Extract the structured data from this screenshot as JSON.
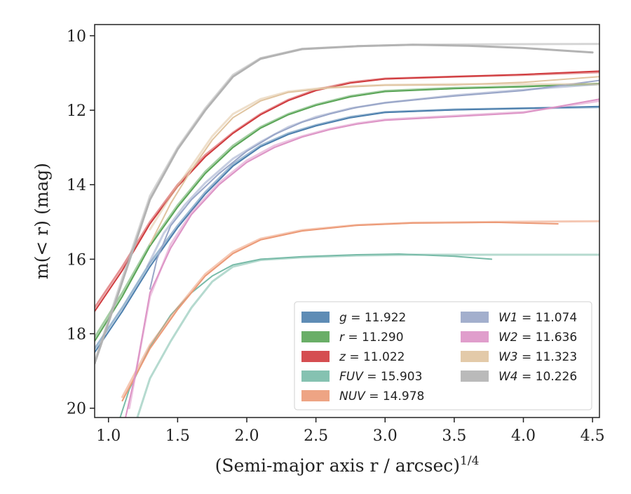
{
  "chart_data": {
    "type": "line",
    "xlabel": "(Semi-major axis r / arcsec)",
    "xlabel_exponent": "1/4",
    "ylabel_prefix": "m(< r) (mag)",
    "xlim": [
      0.9,
      4.55
    ],
    "ylim": [
      20.25,
      9.7
    ],
    "y_inverted": true,
    "xticks": [
      1.0,
      1.5,
      2.0,
      2.5,
      3.0,
      3.5,
      4.0,
      4.5
    ],
    "xtick_labels": [
      "1.0",
      "1.5",
      "2.0",
      "2.5",
      "3.0",
      "3.5",
      "4.0",
      "4.5"
    ],
    "yticks": [
      10,
      12,
      14,
      16,
      18,
      20
    ],
    "ytick_labels": [
      "10",
      "12",
      "14",
      "16",
      "18",
      "20"
    ],
    "grid": false,
    "legend_position": "lower-right",
    "series": [
      {
        "name": "g",
        "value": "11.922",
        "label": "g = 11.922",
        "color": "#4c7fad",
        "model": [
          [
            0.9,
            18.4
          ],
          [
            1.1,
            17.3
          ],
          [
            1.3,
            16.1
          ],
          [
            1.5,
            15.1
          ],
          [
            1.7,
            14.2
          ],
          [
            1.9,
            13.45
          ],
          [
            2.1,
            12.95
          ],
          [
            2.3,
            12.62
          ],
          [
            2.5,
            12.4
          ],
          [
            2.75,
            12.18
          ],
          [
            3.0,
            12.05
          ],
          [
            3.5,
            11.98
          ],
          [
            4.0,
            11.95
          ],
          [
            4.55,
            11.92
          ]
        ],
        "data": [
          [
            0.9,
            18.5
          ],
          [
            1.1,
            17.4
          ],
          [
            1.3,
            16.2
          ],
          [
            1.5,
            15.15
          ],
          [
            1.7,
            14.25
          ],
          [
            1.9,
            13.5
          ],
          [
            2.1,
            12.98
          ],
          [
            2.3,
            12.65
          ],
          [
            2.5,
            12.42
          ],
          [
            2.75,
            12.2
          ],
          [
            3.0,
            12.06
          ],
          [
            3.5,
            11.99
          ],
          [
            4.0,
            11.95
          ],
          [
            4.55,
            11.9
          ]
        ]
      },
      {
        "name": "r",
        "value": "11.290",
        "label": "r = 11.290",
        "color": "#5aa557",
        "model": [
          [
            0.9,
            18.1
          ],
          [
            1.1,
            16.9
          ],
          [
            1.3,
            15.6
          ],
          [
            1.5,
            14.55
          ],
          [
            1.7,
            13.65
          ],
          [
            1.9,
            12.95
          ],
          [
            2.1,
            12.45
          ],
          [
            2.3,
            12.1
          ],
          [
            2.5,
            11.85
          ],
          [
            2.75,
            11.62
          ],
          [
            3.0,
            11.48
          ],
          [
            3.5,
            11.4
          ],
          [
            4.0,
            11.36
          ],
          [
            4.55,
            11.3
          ]
        ],
        "data": [
          [
            0.9,
            18.2
          ],
          [
            1.1,
            17.0
          ],
          [
            1.3,
            15.65
          ],
          [
            1.5,
            14.6
          ],
          [
            1.7,
            13.7
          ],
          [
            1.9,
            13.0
          ],
          [
            2.1,
            12.48
          ],
          [
            2.3,
            12.12
          ],
          [
            2.5,
            11.87
          ],
          [
            2.75,
            11.64
          ],
          [
            3.0,
            11.5
          ],
          [
            3.5,
            11.42
          ],
          [
            4.0,
            11.37
          ],
          [
            4.55,
            11.28
          ]
        ]
      },
      {
        "name": "z",
        "value": "11.022",
        "label": "z = 11.022",
        "color": "#d03b3e",
        "model": [
          [
            0.9,
            17.3
          ],
          [
            1.1,
            16.2
          ],
          [
            1.3,
            15.0
          ],
          [
            1.5,
            14.0
          ],
          [
            1.7,
            13.2
          ],
          [
            1.9,
            12.6
          ],
          [
            2.1,
            12.1
          ],
          [
            2.3,
            11.72
          ],
          [
            2.5,
            11.45
          ],
          [
            2.75,
            11.25
          ],
          [
            3.0,
            11.15
          ],
          [
            3.5,
            11.1
          ],
          [
            4.0,
            11.05
          ],
          [
            4.55,
            10.98
          ]
        ],
        "data": [
          [
            0.9,
            17.4
          ],
          [
            1.1,
            16.3
          ],
          [
            1.3,
            15.05
          ],
          [
            1.5,
            14.05
          ],
          [
            1.7,
            13.25
          ],
          [
            1.9,
            12.62
          ],
          [
            2.1,
            12.12
          ],
          [
            2.3,
            11.74
          ],
          [
            2.5,
            11.47
          ],
          [
            2.75,
            11.27
          ],
          [
            3.0,
            11.16
          ],
          [
            3.5,
            11.1
          ],
          [
            4.0,
            11.04
          ],
          [
            4.55,
            10.95
          ]
        ]
      },
      {
        "name": "FUV",
        "value": "15.903",
        "label": "FUV = 15.903",
        "color": "#78bba8",
        "model": [
          [
            1.2,
            20.35
          ],
          [
            1.3,
            19.2
          ],
          [
            1.45,
            18.2
          ],
          [
            1.6,
            17.3
          ],
          [
            1.75,
            16.6
          ],
          [
            1.9,
            16.2
          ],
          [
            2.1,
            16.02
          ],
          [
            2.4,
            15.95
          ],
          [
            2.8,
            15.9
          ],
          [
            3.2,
            15.88
          ],
          [
            3.8,
            15.88
          ],
          [
            4.55,
            15.88
          ]
        ],
        "data": [
          [
            1.08,
            20.3
          ],
          [
            1.15,
            19.5
          ],
          [
            1.3,
            18.35
          ],
          [
            1.45,
            17.5
          ],
          [
            1.6,
            16.9
          ],
          [
            1.75,
            16.45
          ],
          [
            1.9,
            16.15
          ],
          [
            2.1,
            16.0
          ],
          [
            2.4,
            15.93
          ],
          [
            2.8,
            15.88
          ],
          [
            3.1,
            15.86
          ],
          [
            3.5,
            15.92
          ],
          [
            3.77,
            16.0
          ]
        ]
      },
      {
        "name": "NUV",
        "value": "14.978",
        "label": "NUV = 14.978",
        "color": "#ec9a77",
        "model": [
          [
            1.1,
            19.7
          ],
          [
            1.3,
            18.3
          ],
          [
            1.5,
            17.3
          ],
          [
            1.7,
            16.4
          ],
          [
            1.9,
            15.8
          ],
          [
            2.1,
            15.45
          ],
          [
            2.4,
            15.22
          ],
          [
            2.8,
            15.08
          ],
          [
            3.2,
            15.02
          ],
          [
            3.8,
            15.0
          ],
          [
            4.55,
            14.98
          ]
        ],
        "data": [
          [
            1.1,
            19.8
          ],
          [
            1.2,
            19.1
          ],
          [
            1.3,
            18.4
          ],
          [
            1.5,
            17.35
          ],
          [
            1.7,
            16.45
          ],
          [
            1.9,
            15.85
          ],
          [
            2.1,
            15.48
          ],
          [
            2.4,
            15.24
          ],
          [
            2.8,
            15.09
          ],
          [
            3.2,
            15.03
          ],
          [
            3.8,
            15.01
          ],
          [
            4.25,
            15.05
          ]
        ]
      },
      {
        "name": "W1",
        "value": "11.074",
        "label": "W1 = 11.074",
        "color": "#99a6c8",
        "model": [
          [
            1.28,
            16.2
          ],
          [
            1.4,
            15.3
          ],
          [
            1.55,
            14.55
          ],
          [
            1.7,
            13.95
          ],
          [
            1.9,
            13.3
          ],
          [
            2.1,
            12.85
          ],
          [
            2.3,
            12.45
          ],
          [
            2.5,
            12.18
          ],
          [
            2.75,
            11.95
          ],
          [
            3.0,
            11.8
          ],
          [
            3.5,
            11.6
          ],
          [
            4.0,
            11.45
          ],
          [
            4.55,
            11.3
          ]
        ],
        "data": [
          [
            1.3,
            16.8
          ],
          [
            1.35,
            16.0
          ],
          [
            1.45,
            15.1
          ],
          [
            1.6,
            14.4
          ],
          [
            1.8,
            13.7
          ],
          [
            2.0,
            13.1
          ],
          [
            2.2,
            12.65
          ],
          [
            2.4,
            12.32
          ],
          [
            2.6,
            12.1
          ],
          [
            2.8,
            11.92
          ],
          [
            3.0,
            11.8
          ],
          [
            3.5,
            11.62
          ],
          [
            4.0,
            11.47
          ],
          [
            4.55,
            11.2
          ]
        ]
      },
      {
        "name": "W2",
        "value": "11.636",
        "label": "W2 = 11.636",
        "color": "#dd94c6",
        "model": [
          [
            1.15,
            20.0
          ],
          [
            1.3,
            17.0
          ],
          [
            1.45,
            15.6
          ],
          [
            1.6,
            14.75
          ],
          [
            1.8,
            13.95
          ],
          [
            2.0,
            13.35
          ],
          [
            2.2,
            12.95
          ],
          [
            2.4,
            12.7
          ],
          [
            2.6,
            12.5
          ],
          [
            2.8,
            12.35
          ],
          [
            3.0,
            12.25
          ],
          [
            3.5,
            12.15
          ],
          [
            4.0,
            12.05
          ],
          [
            4.55,
            11.75
          ]
        ],
        "data": [
          [
            1.12,
            20.3
          ],
          [
            1.2,
            19.0
          ],
          [
            1.3,
            16.9
          ],
          [
            1.45,
            15.7
          ],
          [
            1.6,
            14.8
          ],
          [
            1.8,
            14.0
          ],
          [
            2.0,
            13.4
          ],
          [
            2.2,
            13.0
          ],
          [
            2.4,
            12.72
          ],
          [
            2.6,
            12.52
          ],
          [
            2.8,
            12.37
          ],
          [
            3.0,
            12.27
          ],
          [
            3.5,
            12.17
          ],
          [
            4.0,
            12.07
          ],
          [
            4.55,
            11.7
          ]
        ]
      },
      {
        "name": "W3",
        "value": "11.323",
        "label": "W3 = 11.323",
        "color": "#e0c4a0",
        "model": [
          [
            1.3,
            15.2
          ],
          [
            1.45,
            14.3
          ],
          [
            1.6,
            13.5
          ],
          [
            1.75,
            12.7
          ],
          [
            1.9,
            12.1
          ],
          [
            2.1,
            11.7
          ],
          [
            2.3,
            11.5
          ],
          [
            2.6,
            11.38
          ],
          [
            3.0,
            11.32
          ],
          [
            3.5,
            11.3
          ],
          [
            4.0,
            11.3
          ],
          [
            4.55,
            11.3
          ]
        ],
        "data": [
          [
            1.3,
            15.6
          ],
          [
            1.45,
            14.5
          ],
          [
            1.6,
            13.6
          ],
          [
            1.75,
            12.8
          ],
          [
            1.9,
            12.2
          ],
          [
            2.1,
            11.75
          ],
          [
            2.3,
            11.52
          ],
          [
            2.6,
            11.4
          ],
          [
            3.0,
            11.33
          ],
          [
            3.5,
            11.32
          ],
          [
            4.0,
            11.25
          ],
          [
            4.55,
            11.1
          ]
        ]
      },
      {
        "name": "W4",
        "value": "10.226",
        "label": "W4 = 10.226",
        "color": "#b3b3b3",
        "model": [
          [
            0.9,
            18.75
          ],
          [
            1.1,
            16.5
          ],
          [
            1.3,
            14.3
          ],
          [
            1.5,
            13.0
          ],
          [
            1.7,
            11.95
          ],
          [
            1.9,
            11.05
          ],
          [
            2.1,
            10.6
          ],
          [
            2.4,
            10.35
          ],
          [
            2.8,
            10.28
          ],
          [
            3.2,
            10.24
          ],
          [
            3.8,
            10.23
          ],
          [
            4.55,
            10.22
          ]
        ],
        "data": [
          [
            0.9,
            18.8
          ],
          [
            1.1,
            16.6
          ],
          [
            1.3,
            14.4
          ],
          [
            1.5,
            13.05
          ],
          [
            1.7,
            12.0
          ],
          [
            1.9,
            11.1
          ],
          [
            2.1,
            10.62
          ],
          [
            2.4,
            10.36
          ],
          [
            2.8,
            10.28
          ],
          [
            3.2,
            10.24
          ],
          [
            3.6,
            10.27
          ],
          [
            4.0,
            10.33
          ],
          [
            4.3,
            10.4
          ],
          [
            4.5,
            10.45
          ]
        ]
      }
    ]
  }
}
